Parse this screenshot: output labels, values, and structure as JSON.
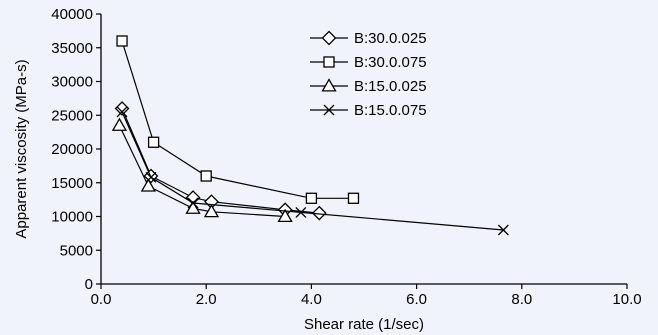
{
  "colors": {
    "background": "#f0f3fb",
    "ink": "#000000",
    "marker_fill": "#ffffff"
  },
  "chart_data": {
    "type": "line",
    "xlabel": "Shear rate (1/sec)",
    "ylabel": "Apparent viscosity (MPa-s)",
    "xlim": [
      0,
      10
    ],
    "ylim": [
      0,
      40000
    ],
    "x_ticks": [
      "0.0",
      "2.0",
      "4.0",
      "6.0",
      "8.0",
      "10.0"
    ],
    "y_ticks": [
      "0",
      "5000",
      "10000",
      "15000",
      "20000",
      "25000",
      "30000",
      "35000",
      "40000"
    ],
    "grid": false,
    "legend_position": "top-right",
    "series": [
      {
        "name": "B:30.0.025",
        "marker": "diamond",
        "x": [
          0.4,
          0.95,
          1.75,
          2.1,
          3.5,
          4.15
        ],
        "y": [
          26000,
          16000,
          12800,
          12200,
          11000,
          10500
        ]
      },
      {
        "name": "B:30.0.075",
        "marker": "square",
        "x": [
          0.4,
          1.0,
          2.0,
          4.0,
          4.8
        ],
        "y": [
          36000,
          21000,
          16000,
          12700,
          12700
        ]
      },
      {
        "name": "B:15.0.025",
        "marker": "triangle",
        "x": [
          0.35,
          0.9,
          1.75,
          2.1,
          3.5
        ],
        "y": [
          23500,
          14500,
          11200,
          10700,
          10000
        ]
      },
      {
        "name": "B:15.0.075",
        "marker": "x",
        "x": [
          0.4,
          0.95,
          1.75,
          3.8,
          7.65
        ],
        "y": [
          25500,
          15800,
          12000,
          10600,
          8000
        ]
      }
    ]
  }
}
